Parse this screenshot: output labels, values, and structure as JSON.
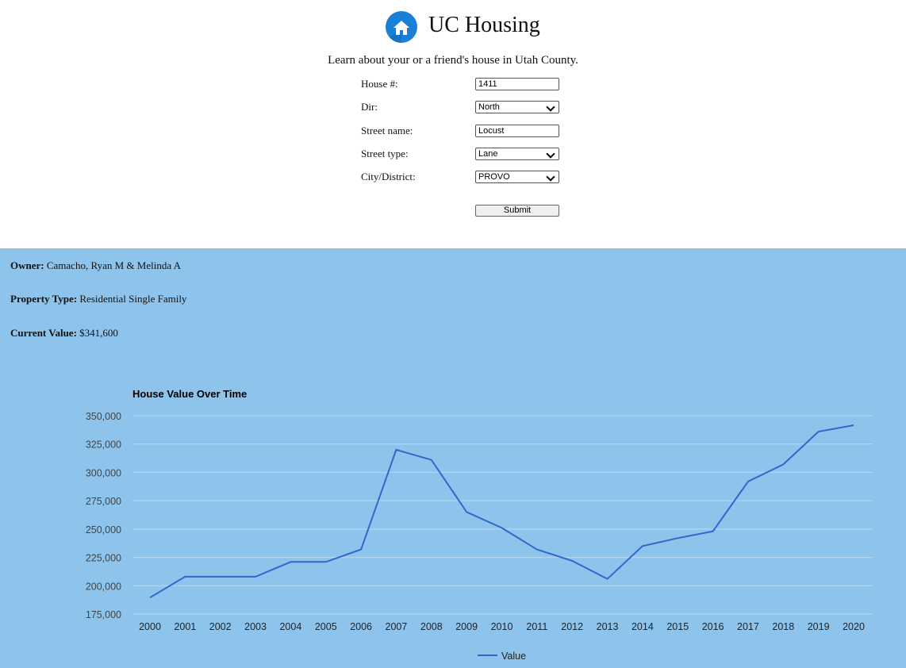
{
  "app": {
    "title": "UC Housing",
    "subtitle": "Learn about your or a friend's house in Utah County.",
    "logo_icon": "house-icon"
  },
  "form": {
    "house_number": {
      "label": "House #:",
      "value": "1411"
    },
    "dir": {
      "label": "Dir:",
      "value": "North"
    },
    "street_name": {
      "label": "Street name:",
      "value": "Locust"
    },
    "street_type": {
      "label": "Street type:",
      "value": "Lane"
    },
    "city": {
      "label": "City/District:",
      "value": "PROVO"
    },
    "submit_label": "Submit"
  },
  "results": {
    "owner_label": "Owner:",
    "owner": "Camacho, Ryan M & Melinda A",
    "type_label": "Property Type:",
    "type": "Residential Single Family",
    "value_label": "Current Value:",
    "value": "$341,600"
  },
  "colors": {
    "results_bg": "#8ec4ec",
    "line": "#3366cc",
    "logo": "#1a7fd6"
  },
  "chart_data": {
    "type": "line",
    "title": "House Value Over Time",
    "categories": [
      "2000",
      "2001",
      "2002",
      "2003",
      "2004",
      "2005",
      "2006",
      "2007",
      "2008",
      "2009",
      "2010",
      "2011",
      "2012",
      "2013",
      "2014",
      "2015",
      "2016",
      "2017",
      "2018",
      "2019",
      "2020"
    ],
    "series": [
      {
        "name": "Value",
        "values": [
          189500,
          208000,
          208000,
          208000,
          221000,
          221000,
          232000,
          320000,
          311000,
          265000,
          251000,
          232000,
          222000,
          206000,
          235000,
          242000,
          248000,
          292000,
          307000,
          336000,
          341600
        ]
      }
    ],
    "yticks": [
      "350,000",
      "325,000",
      "300,000",
      "275,000",
      "250,000",
      "225,000",
      "200,000",
      "175,000"
    ],
    "ylim": [
      175000,
      350000
    ],
    "grid": true,
    "legend": "bottom"
  }
}
